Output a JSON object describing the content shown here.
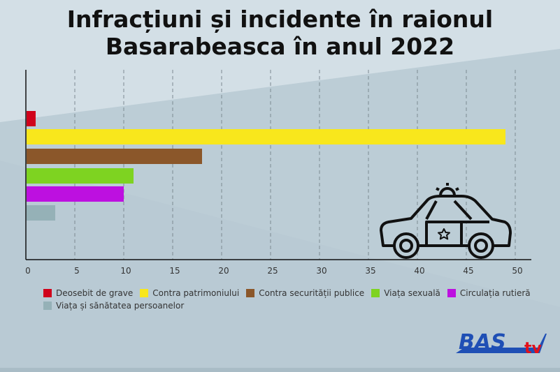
{
  "title_line1": "Infracțiuni și incidente în raionul",
  "title_line2": "Basarabeasca în anul 2022",
  "logo": {
    "text_main": "BAS",
    "text_sub": "tv"
  },
  "chart_data": {
    "type": "bar",
    "orientation": "horizontal",
    "title": "Infracțiuni și incidente în raionul Basarabeasca în anul 2022",
    "categories": [
      "Deosebit de grave",
      "Contra patrimoniului",
      "Contra securității publice",
      "Viața sexuală",
      "Circulația rutieră",
      "Viața și sănătatea persoanelor"
    ],
    "values": [
      1,
      49,
      18,
      11,
      10,
      3
    ],
    "colors": [
      "#d0021b",
      "#f8e71c",
      "#8b572a",
      "#7ed321",
      "#bd10e0",
      "#95b1b7"
    ],
    "xlim": [
      0,
      50
    ],
    "xticks": [
      0,
      5,
      10,
      15,
      20,
      25,
      30,
      35,
      40,
      45,
      50
    ],
    "grid": true,
    "legend_position": "bottom",
    "xlabel": "",
    "ylabel": ""
  }
}
